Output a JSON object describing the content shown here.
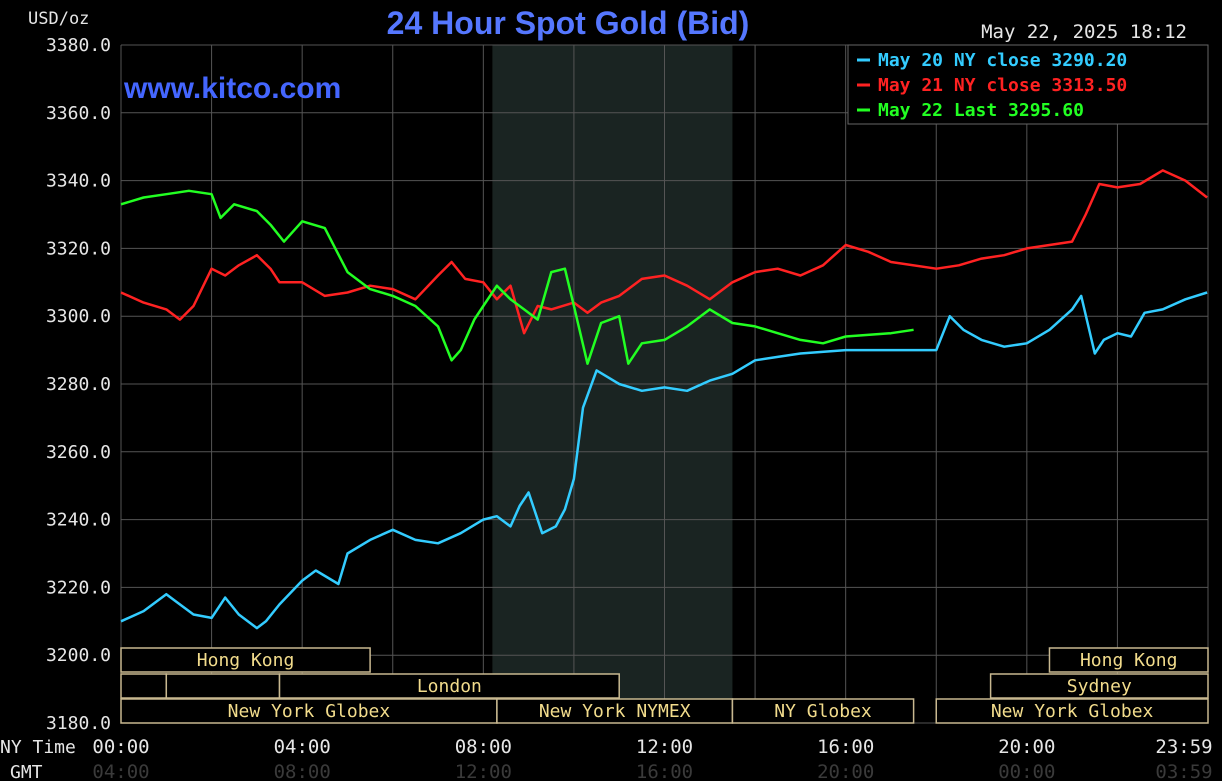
{
  "chart_data": {
    "type": "line",
    "title": "24 Hour Spot Gold (Bid)",
    "y_unit_label": "USD/oz",
    "watermark": "www.kitco.com",
    "timestamp": "May 22, 2025 18:12",
    "ylim": [
      3180,
      3380
    ],
    "y_ticks": [
      "3380.0",
      "3360.0",
      "3340.0",
      "3320.0",
      "3300.0",
      "3280.0",
      "3260.0",
      "3240.0",
      "3220.0",
      "3200.0",
      "3180.0"
    ],
    "x_hours": [
      0,
      4,
      8,
      12,
      16,
      20,
      23.98
    ],
    "x_ticks_ny": [
      "00:00",
      "04:00",
      "08:00",
      "12:00",
      "16:00",
      "20:00",
      "23:59"
    ],
    "x_ticks_gmt": [
      "04:00",
      "08:00",
      "12:00",
      "16:00",
      "20:00",
      "00:00",
      "03:59"
    ],
    "x_row_labels": {
      "ny": "NY Time",
      "gmt": "GMT"
    },
    "grid": true,
    "legend_position": "top-right",
    "shaded_region_hours": [
      8.2,
      13.5
    ],
    "sessions": [
      {
        "label": "Hong Kong",
        "row": 0,
        "start": 0,
        "end": 5.5
      },
      {
        "label": "Hong Kong",
        "row": 0,
        "start": 20.5,
        "end": 24
      },
      {
        "label": "",
        "row": 1,
        "start": 0,
        "end": 1
      },
      {
        "label": "",
        "row": 1,
        "start": 1,
        "end": 3.5
      },
      {
        "label": "London",
        "row": 1,
        "start": 3.5,
        "end": 11
      },
      {
        "label": "Sydney",
        "row": 1,
        "start": 19.2,
        "end": 24
      },
      {
        "label": "New York Globex",
        "row": 2,
        "start": 0,
        "end": 8.3
      },
      {
        "label": "New York NYMEX",
        "row": 2,
        "start": 8.3,
        "end": 13.5
      },
      {
        "label": "NY Globex",
        "row": 2,
        "start": 13.5,
        "end": 17.5
      },
      {
        "label": "New York Globex",
        "row": 2,
        "start": 18,
        "end": 24
      }
    ],
    "series": [
      {
        "name": "May 20 NY close 3290.20",
        "color": "#33ccff",
        "x": [
          0,
          0.5,
          1,
          1.2,
          1.6,
          2,
          2.3,
          2.6,
          3,
          3.2,
          3.5,
          4,
          4.3,
          4.8,
          5,
          5.5,
          6,
          6.5,
          7,
          7.5,
          8,
          8.3,
          8.6,
          8.8,
          9,
          9.3,
          9.6,
          9.8,
          10,
          10.2,
          10.5,
          11,
          11.5,
          12,
          12.5,
          13,
          13.5,
          14,
          14.5,
          15,
          16,
          17,
          18,
          18.3,
          18.6,
          19,
          19.5,
          20,
          20.5,
          21,
          21.2,
          21.5,
          21.7,
          22,
          22.3,
          22.6,
          23,
          23.5,
          23.98
        ],
        "y": [
          3210,
          3213,
          3218,
          3216,
          3212,
          3211,
          3217,
          3212,
          3208,
          3210,
          3215,
          3222,
          3225,
          3221,
          3230,
          3234,
          3237,
          3234,
          3233,
          3236,
          3240,
          3241,
          3238,
          3244,
          3248,
          3236,
          3238,
          3243,
          3252,
          3273,
          3284,
          3280,
          3278,
          3279,
          3278,
          3281,
          3283,
          3287,
          3288,
          3289,
          3290,
          3290,
          3290,
          3300,
          3296,
          3293,
          3291,
          3292,
          3296,
          3302,
          3306,
          3289,
          3293,
          3295,
          3294,
          3301,
          3302,
          3305,
          3307
        ]
      },
      {
        "name": "May 21 NY close 3313.50",
        "color": "#ff2222",
        "x": [
          0,
          0.5,
          1,
          1.3,
          1.6,
          2,
          2.3,
          2.6,
          3,
          3.3,
          3.5,
          4,
          4.5,
          5,
          5.5,
          6,
          6.5,
          7,
          7.3,
          7.6,
          8,
          8.3,
          8.6,
          8.9,
          9.2,
          9.5,
          10,
          10.3,
          10.6,
          11,
          11.5,
          12,
          12.5,
          13,
          13.5,
          14,
          14.5,
          15,
          15.5,
          16,
          16.5,
          17,
          18,
          18.5,
          19,
          19.5,
          20,
          20.5,
          21,
          21.3,
          21.6,
          22,
          22.5,
          23,
          23.5,
          23.98
        ],
        "y": [
          3307,
          3304,
          3302,
          3299,
          3303,
          3314,
          3312,
          3315,
          3318,
          3314,
          3310,
          3310,
          3306,
          3307,
          3309,
          3308,
          3305,
          3312,
          3316,
          3311,
          3310,
          3305,
          3309,
          3295,
          3303,
          3302,
          3304,
          3301,
          3304,
          3306,
          3311,
          3312,
          3309,
          3305,
          3310,
          3313,
          3314,
          3312,
          3315,
          3321,
          3319,
          3316,
          3314,
          3315,
          3317,
          3318,
          3320,
          3321,
          3322,
          3330,
          3339,
          3338,
          3339,
          3343,
          3340,
          3335
        ]
      },
      {
        "name": "May 22 Last 3295.60",
        "color": "#22ff22",
        "x": [
          0,
          0.5,
          1,
          1.5,
          2,
          2.2,
          2.5,
          3,
          3.3,
          3.6,
          4,
          4.5,
          5,
          5.5,
          6,
          6.5,
          7,
          7.3,
          7.5,
          7.8,
          8,
          8.3,
          8.6,
          8.9,
          9.2,
          9.5,
          9.8,
          10,
          10.3,
          10.6,
          11,
          11.2,
          11.5,
          12,
          12.5,
          13,
          13.5,
          14,
          14.5,
          15,
          15.5,
          16,
          17,
          17.5
        ],
        "y": [
          3333,
          3335,
          3336,
          3337,
          3336,
          3329,
          3333,
          3331,
          3327,
          3322,
          3328,
          3326,
          3313,
          3308,
          3306,
          3303,
          3297,
          3287,
          3290,
          3299,
          3303,
          3309,
          3305,
          3302,
          3299,
          3313,
          3314,
          3303,
          3286,
          3298,
          3300,
          3286,
          3292,
          3293,
          3297,
          3302,
          3298,
          3297,
          3295,
          3293,
          3292,
          3294,
          3295,
          3296
        ]
      }
    ]
  }
}
